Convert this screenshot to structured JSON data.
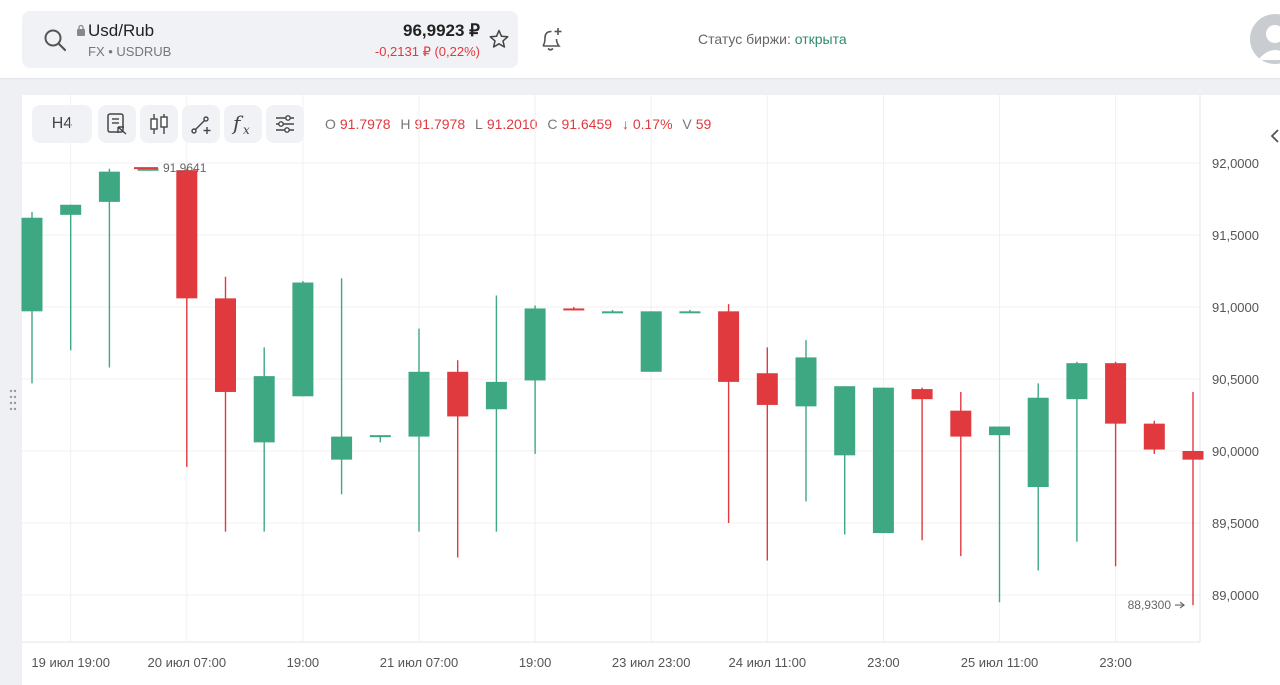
{
  "header": {
    "pair_name": "Usd/Rub",
    "pair_sub": "FX • USDRUB",
    "price": "96,9923 ₽",
    "change": "-0,2131 ₽ (0,22%)",
    "status_label": "Статус биржи: ",
    "status_value": "открыта"
  },
  "icons": [
    "search-icon",
    "lock-icon",
    "star-icon",
    "bell-plus-icon",
    "avatar-icon",
    "grip-icon",
    "chart-type-icon",
    "candles-icon",
    "draw-tools-icon",
    "indicators-icon",
    "settings-sliders-icon",
    "chevron-left-icon"
  ],
  "colors": {
    "up": "#3ea883",
    "down": "#e0393e",
    "accent_green": "#2e8b6f"
  },
  "toolbar": {
    "interval": "H4",
    "ohlc": {
      "o_label": "O",
      "o": "91.7978",
      "h_label": "H",
      "h": "91.7978",
      "l_label": "L",
      "l": "91.2010",
      "c_label": "C",
      "c": "91.6459",
      "change": "↓ 0.17%",
      "v_label": "V",
      "v": "59"
    }
  },
  "chart_data": {
    "type": "candlestick",
    "ylim": [
      88.7,
      92.2
    ],
    "yticks": [
      "92,0000",
      "91,5000",
      "91,0000",
      "90,5000",
      "90,0000",
      "89,5000",
      "89,0000"
    ],
    "ytick_values": [
      92.0,
      91.5,
      91.0,
      90.5,
      90.0,
      89.5,
      89.0
    ],
    "xticks": [
      "19 июл 19:00",
      "20 июл 07:00",
      "19:00",
      "21 июл 07:00",
      "19:00",
      "23 июл 23:00",
      "24 июл 11:00",
      "23:00",
      "25 июл 11:00",
      "23:00"
    ],
    "xtick_candle_index": [
      1,
      4,
      7,
      10,
      13,
      16,
      19,
      22,
      25,
      28
    ],
    "high_marker": "91,9641",
    "last_marker": "88,9300",
    "candles": [
      {
        "o": 90.97,
        "h": 91.66,
        "l": 90.47,
        "c": 91.62
      },
      {
        "o": 91.64,
        "h": 91.71,
        "l": 90.7,
        "c": 91.71
      },
      {
        "o": 91.73,
        "h": 91.96,
        "l": 90.58,
        "c": 91.94
      },
      {
        "o": 91.96,
        "h": 91.96,
        "l": 91.96,
        "c": 91.96
      },
      {
        "o": 91.95,
        "h": 91.96,
        "l": 89.89,
        "c": 91.06
      },
      {
        "o": 91.06,
        "h": 91.21,
        "l": 89.44,
        "c": 90.41
      },
      {
        "o": 90.06,
        "h": 90.72,
        "l": 89.44,
        "c": 90.52
      },
      {
        "o": 90.38,
        "h": 91.18,
        "l": 90.38,
        "c": 91.17
      },
      {
        "o": 89.94,
        "h": 91.2,
        "l": 89.7,
        "c": 90.1
      },
      {
        "o": 90.1,
        "h": 90.11,
        "l": 90.06,
        "c": 90.11
      },
      {
        "o": 90.1,
        "h": 90.85,
        "l": 89.44,
        "c": 90.55
      },
      {
        "o": 90.55,
        "h": 90.63,
        "l": 89.26,
        "c": 90.24
      },
      {
        "o": 90.29,
        "h": 91.08,
        "l": 89.44,
        "c": 90.48
      },
      {
        "o": 90.49,
        "h": 91.01,
        "l": 89.98,
        "c": 90.99
      },
      {
        "o": 90.99,
        "h": 91.0,
        "l": 90.98,
        "c": 90.98
      },
      {
        "o": 90.97,
        "h": 90.98,
        "l": 90.96,
        "c": 90.97
      },
      {
        "o": 90.55,
        "h": 90.97,
        "l": 90.55,
        "c": 90.97
      },
      {
        "o": 90.97,
        "h": 90.98,
        "l": 90.96,
        "c": 90.97
      },
      {
        "o": 90.97,
        "h": 91.02,
        "l": 89.5,
        "c": 90.48
      },
      {
        "o": 90.54,
        "h": 90.72,
        "l": 89.24,
        "c": 90.32
      },
      {
        "o": 90.31,
        "h": 90.77,
        "l": 89.65,
        "c": 90.65
      },
      {
        "o": 89.97,
        "h": 90.45,
        "l": 89.42,
        "c": 90.45
      },
      {
        "o": 89.43,
        "h": 90.44,
        "l": 89.43,
        "c": 90.44
      },
      {
        "o": 90.43,
        "h": 90.44,
        "l": 89.38,
        "c": 90.36
      },
      {
        "o": 90.28,
        "h": 90.41,
        "l": 89.27,
        "c": 90.1
      },
      {
        "o": 90.11,
        "h": 90.17,
        "l": 88.95,
        "c": 90.17
      },
      {
        "o": 89.75,
        "h": 90.47,
        "l": 89.17,
        "c": 90.37
      },
      {
        "o": 90.36,
        "h": 90.62,
        "l": 89.37,
        "c": 90.61
      },
      {
        "o": 90.61,
        "h": 90.62,
        "l": 89.2,
        "c": 90.19
      },
      {
        "o": 90.19,
        "h": 90.21,
        "l": 89.98,
        "c": 90.01
      },
      {
        "o": 90.0,
        "h": 90.41,
        "l": 88.93,
        "c": 89.94
      }
    ]
  }
}
